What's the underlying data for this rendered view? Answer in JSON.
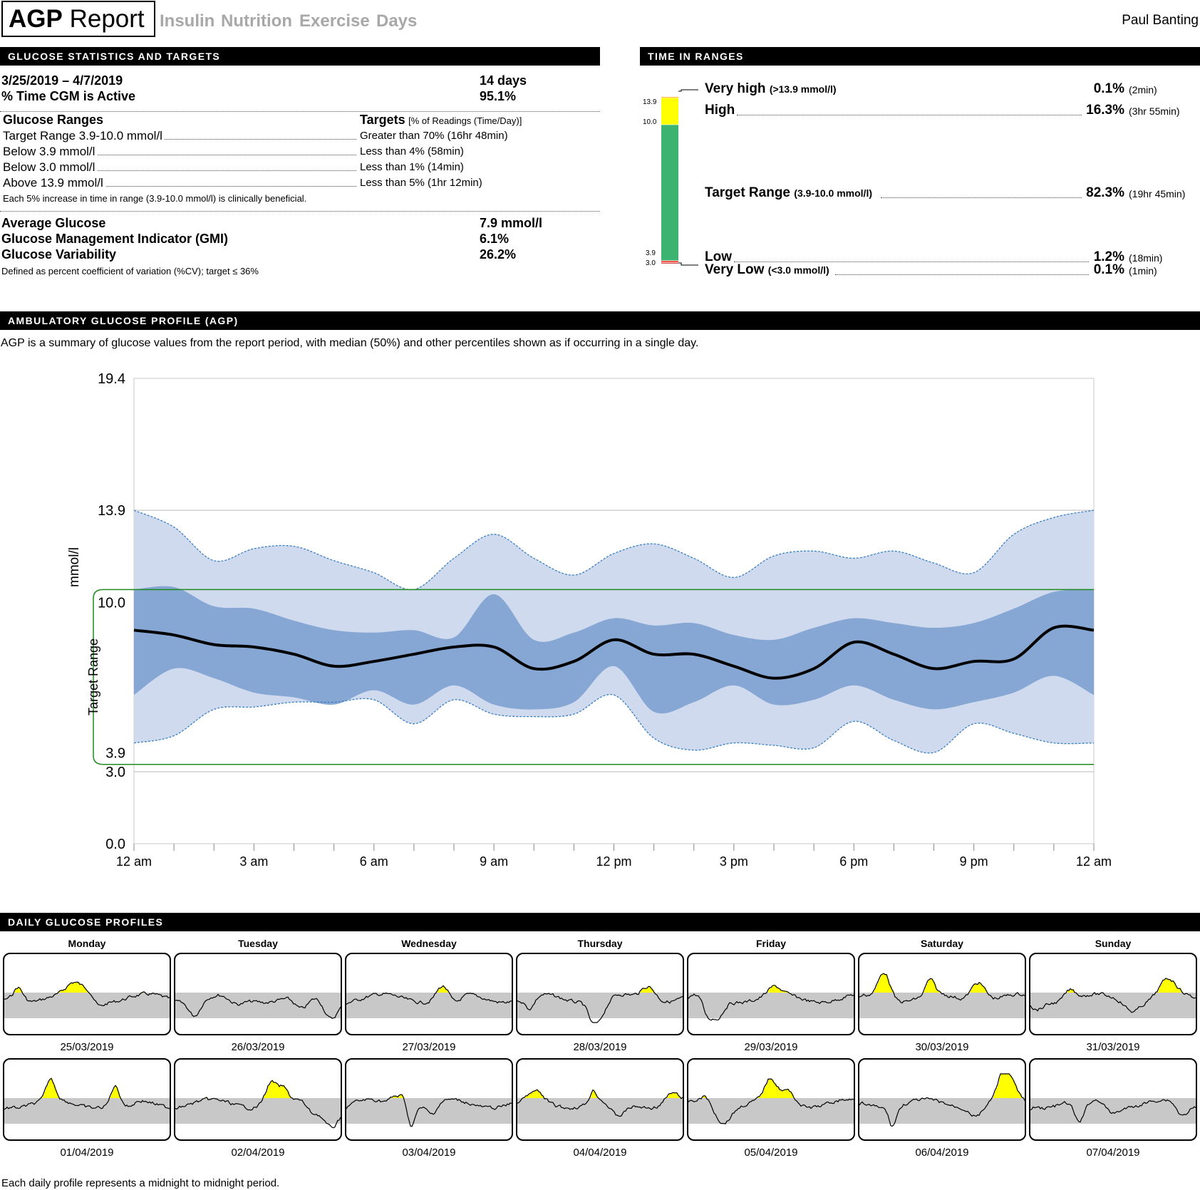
{
  "header": {
    "title_bold": "AGP",
    "title_rest": " Report",
    "tabs": [
      "Insulin",
      "Nutrition",
      "Exercise",
      "Days"
    ],
    "user": "Paul Banting"
  },
  "stats": {
    "section_title": "GLUCOSE STATISTICS AND TARGETS",
    "date_range": "3/25/2019 – 4/7/2019",
    "days": "14 days",
    "cgm_active_label": "% Time CGM is Active",
    "cgm_active_value": "95.1%",
    "ranges_header": "Glucose Ranges",
    "targets_header": "Targets",
    "targets_header_note": "[% of Readings (Time/Day)]",
    "ranges": [
      {
        "label": "Target Range 3.9-10.0 mmol/l",
        "target": "Greater than 70% (16hr 48min)"
      },
      {
        "label": "Below 3.9 mmol/l",
        "target": "Less than 4% (58min)"
      },
      {
        "label": "Below 3.0 mmol/l",
        "target": "Less than 1% (14min)"
      },
      {
        "label": "Above 13.9 mmol/l",
        "target": "Less than 5% (1hr 12min)"
      }
    ],
    "range_note": "Each 5% increase in time in range (3.9-10.0 mmol/l) is clinically beneficial.",
    "avg_label": "Average Glucose",
    "avg_value": "7.9 mmol/l",
    "gmi_label": "Glucose Management Indicator (GMI)",
    "gmi_value": "6.1%",
    "gv_label": "Glucose Variability",
    "gv_value": "26.2%",
    "gv_note": "Defined as percent coefficient of variation (%CV); target ≤ 36%"
  },
  "tir": {
    "section_title": "TIME IN RANGES",
    "ticks": [
      "13.9",
      "10.0",
      "3.9",
      "3.0"
    ],
    "colors": {
      "very_high": "#ff9900",
      "high": "#ffff00",
      "target": "#3cb371",
      "low": "#ff3b30",
      "very_low": "#b00000"
    },
    "very_high": {
      "label": "Very high",
      "range": "(>13.9 mmol/l)",
      "pct": "0.1%",
      "time": "(2min)",
      "value": 0.1
    },
    "high": {
      "label": "High",
      "pct": "16.3%",
      "time": "(3hr 55min)",
      "value": 16.3
    },
    "target": {
      "label": "Target Range",
      "range": "(3.9-10.0 mmol/l)",
      "pct": "82.3%",
      "time": "(19hr 45min)",
      "value": 82.3
    },
    "low": {
      "label": "Low",
      "pct": "1.2%",
      "time": "(18min)",
      "value": 1.2
    },
    "very_low": {
      "label": "Very Low",
      "range": "(<3.0 mmol/l)",
      "pct": "0.1%",
      "time": "(1min)",
      "value": 0.1
    }
  },
  "agp": {
    "section_title": "AMBULATORY GLUCOSE PROFILE (AGP)",
    "description": "AGP is a summary of glucose values from the report period, with median (50%) and other percentiles shown as if occurring in a single day.",
    "ylabel": "mmol/l",
    "target_label": "Target Range",
    "yticks": [
      "19.4",
      "13.9",
      "10.0",
      "3.9",
      "3.0",
      "0.0"
    ],
    "xticks": [
      "12 am",
      "3 am",
      "6 am",
      "9 am",
      "12 pm",
      "3 pm",
      "6 pm",
      "9 pm",
      "12 am"
    ]
  },
  "chart_data": {
    "type": "area",
    "xlabel": "",
    "ylabel": "mmol/l",
    "ylim": [
      0,
      19.4
    ],
    "xlim": [
      0,
      24
    ],
    "reference_lines": [
      13.9,
      10.0,
      3.9,
      3.0
    ],
    "target_range": [
      3.9,
      10.0
    ],
    "x": [
      0,
      1,
      2,
      3,
      4,
      5,
      6,
      7,
      8,
      9,
      10,
      11,
      12,
      13,
      14,
      15,
      16,
      17,
      18,
      19,
      20,
      21,
      22,
      23,
      24
    ],
    "series": [
      {
        "name": "95%",
        "values": [
          13.9,
          13.2,
          11.8,
          12.3,
          12.4,
          11.8,
          11.3,
          10.6,
          11.9,
          12.9,
          11.9,
          11.2,
          12.1,
          12.5,
          11.9,
          11.1,
          12.0,
          12.2,
          11.9,
          12.2,
          11.7,
          11.3,
          12.9,
          13.6,
          13.9
        ]
      },
      {
        "name": "75%",
        "values": [
          10.6,
          10.7,
          9.9,
          9.8,
          9.3,
          8.9,
          8.8,
          8.9,
          8.6,
          10.4,
          8.5,
          8.8,
          9.4,
          9.1,
          9.2,
          8.7,
          8.5,
          9.0,
          9.4,
          9.2,
          9.0,
          9.2,
          9.8,
          10.5,
          10.6
        ]
      },
      {
        "name": "50%",
        "values": [
          8.9,
          8.7,
          8.3,
          8.2,
          7.9,
          7.4,
          7.6,
          7.9,
          8.2,
          8.2,
          7.3,
          7.6,
          8.5,
          7.9,
          7.9,
          7.4,
          6.9,
          7.3,
          8.4,
          7.9,
          7.3,
          7.6,
          7.7,
          9.0,
          8.9
        ]
      },
      {
        "name": "25%",
        "values": [
          6.2,
          7.3,
          6.9,
          6.3,
          6.1,
          5.8,
          6.4,
          5.8,
          6.6,
          5.8,
          5.6,
          5.9,
          7.4,
          5.5,
          5.9,
          6.6,
          5.8,
          6.0,
          6.6,
          6.0,
          5.6,
          5.9,
          6.3,
          7.0,
          6.2
        ]
      },
      {
        "name": "5%",
        "values": [
          4.2,
          4.5,
          5.6,
          5.7,
          5.9,
          5.9,
          6.0,
          5.0,
          6.0,
          5.4,
          5.3,
          5.4,
          6.2,
          4.4,
          3.9,
          4.2,
          4.1,
          4.0,
          5.1,
          4.3,
          3.8,
          5.0,
          4.6,
          4.2,
          4.2
        ]
      }
    ],
    "colors": {
      "outer_band": "#cfdaee",
      "inner_band": "#86a6d3",
      "median": "#000000",
      "target_lines": "#1e8a1e",
      "grid": "#c8c8c8"
    }
  },
  "daily": {
    "section_title": "DAILY GLUCOSE PROFILES",
    "weekdays": [
      "Monday",
      "Tuesday",
      "Wednesday",
      "Thursday",
      "Friday",
      "Saturday",
      "Sunday"
    ],
    "dates_week1": [
      "25/03/2019",
      "26/03/2019",
      "27/03/2019",
      "28/03/2019",
      "29/03/2019",
      "30/03/2019",
      "31/03/2019"
    ],
    "dates_week2": [
      "01/04/2019",
      "02/04/2019",
      "03/04/2019",
      "04/04/2019",
      "05/04/2019",
      "06/04/2019",
      "07/04/2019"
    ],
    "footnote": "Each daily profile represents a midnight to midnight period."
  }
}
